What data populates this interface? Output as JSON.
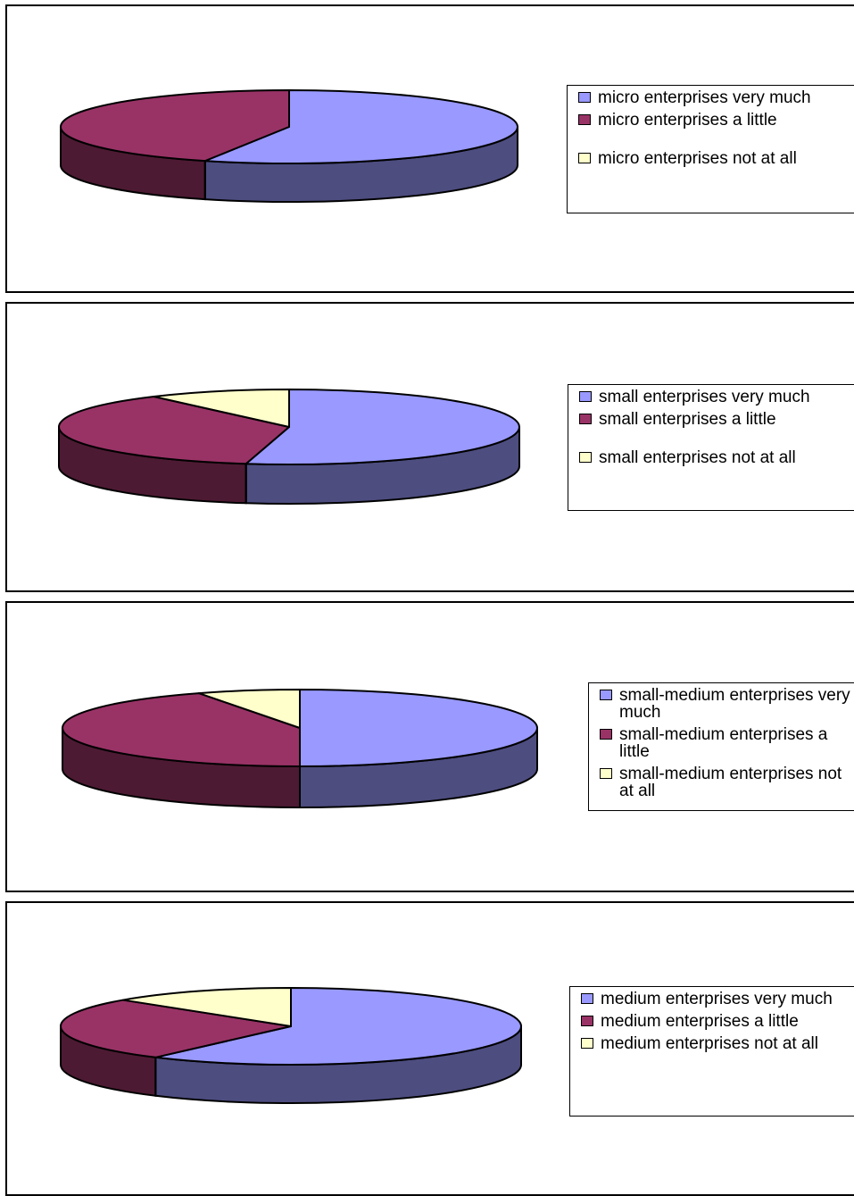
{
  "chart_data": [
    {
      "type": "pie",
      "series": [
        {
          "name": "micro enterprises very much",
          "value": 56
        },
        {
          "name": "micro enterprises  a little",
          "value": 44
        },
        {
          "name": "micro enterprises not at all",
          "value": 0
        }
      ],
      "legend": [
        "micro enterprises very much",
        "micro enterprises  a little",
        "micro enterprises not at all"
      ],
      "colors": [
        "#9999ff",
        "#993366",
        "#ffffcc"
      ]
    },
    {
      "type": "pie",
      "series": [
        {
          "name": "small enterprises very much",
          "value": 53
        },
        {
          "name": "small enterprises  a little",
          "value": 37
        },
        {
          "name": "small enterprises not at all",
          "value": 10
        }
      ],
      "legend": [
        "small enterprises very much",
        "small enterprises  a little",
        "small enterprises not at all"
      ],
      "colors": [
        "#9999ff",
        "#993366",
        "#ffffcc"
      ]
    },
    {
      "type": "pie",
      "series": [
        {
          "name": "small-medium enterprises very much",
          "value": 50
        },
        {
          "name": "small-medium enterprises  a little",
          "value": 43
        },
        {
          "name": "small-medium enterprises not at all",
          "value": 7
        }
      ],
      "legend": [
        "small-medium enterprises very much",
        "small-medium enterprises  a little",
        "small-medium enterprises not at all"
      ],
      "colors": [
        "#9999ff",
        "#993366",
        "#ffffcc"
      ]
    },
    {
      "type": "pie",
      "series": [
        {
          "name": "medium enterprises very much",
          "value": 60
        },
        {
          "name": "medium enterprises  a little",
          "value": 27
        },
        {
          "name": "medium enterprises not at all",
          "value": 13
        }
      ],
      "legend": [
        "medium enterprises very much",
        "medium enterprises  a little",
        "medium enterprises not at all"
      ],
      "colors": [
        "#9999ff",
        "#993366",
        "#ffffcc"
      ]
    }
  ]
}
